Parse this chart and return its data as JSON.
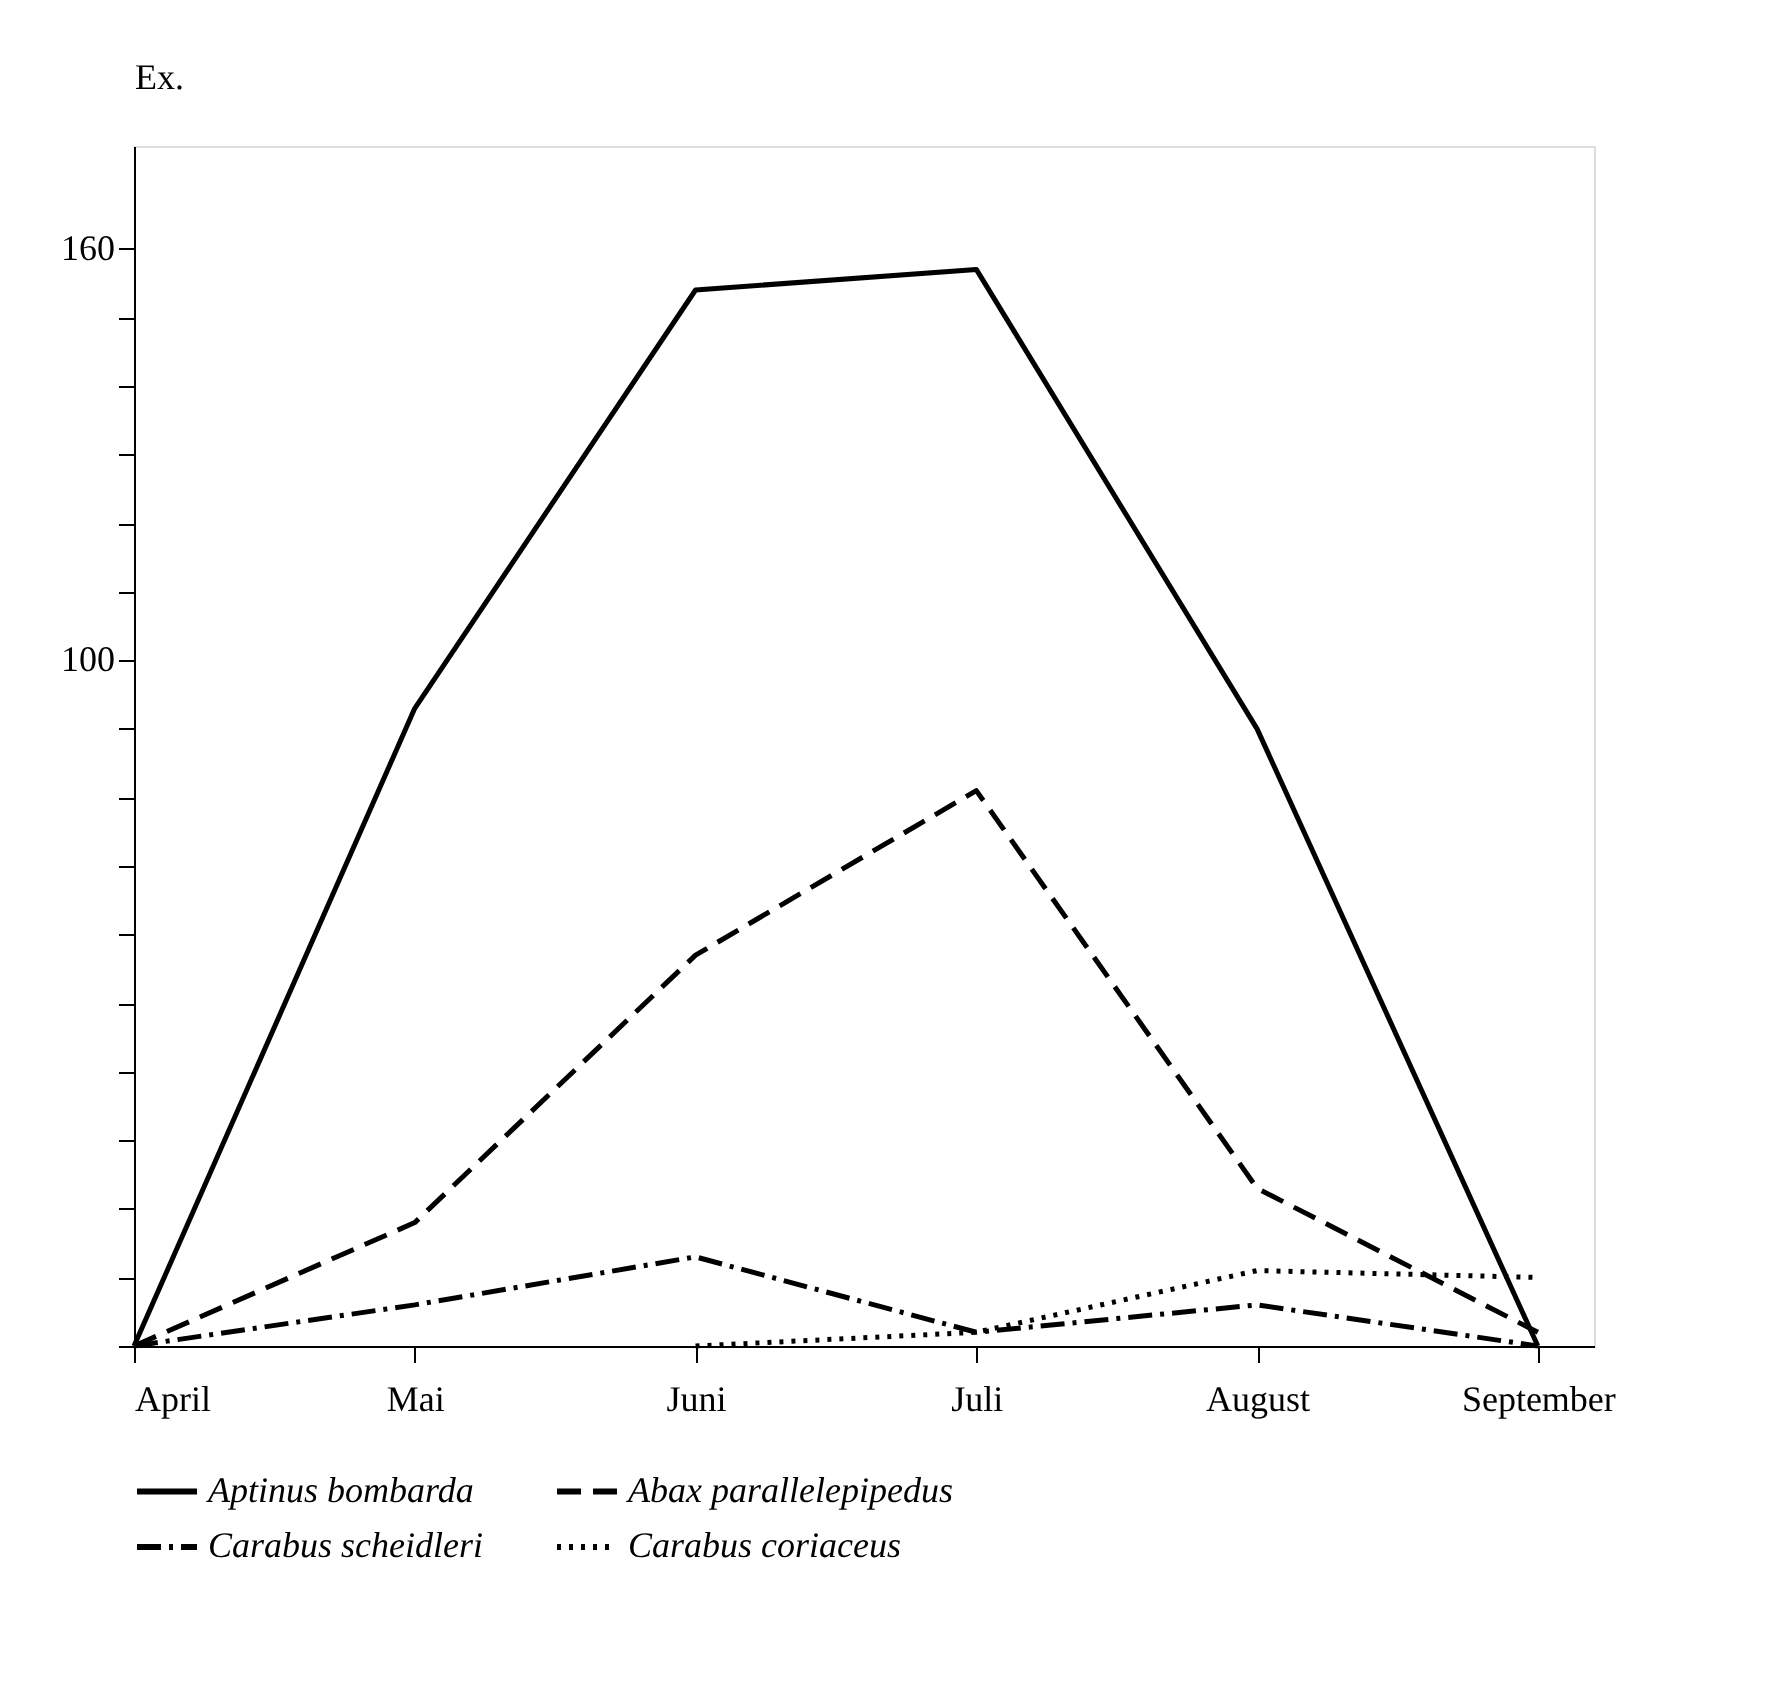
{
  "chart_data": {
    "type": "line",
    "ylabel": "Ex.",
    "categories": [
      "April",
      "Mai",
      "Juni",
      "Juli",
      "August",
      "September"
    ],
    "series": [
      {
        "name": "Aptinus bombarda",
        "color": "#000000",
        "line_style": "solid",
        "values": [
          0,
          93,
          154,
          157,
          90,
          0
        ]
      },
      {
        "name": "Abax parallelepipedus",
        "color": "#000000",
        "line_style": "dashed",
        "values": [
          0,
          18,
          57,
          81,
          23,
          2
        ]
      },
      {
        "name": "Carabus scheidleri",
        "color": "#000000",
        "line_style": "dashdot",
        "values": [
          0,
          6,
          13,
          2,
          6,
          0
        ]
      },
      {
        "name": "Carabus coriaceus",
        "color": "#000000",
        "line_style": "dotted",
        "values": [
          null,
          null,
          0,
          2,
          11,
          10
        ]
      }
    ],
    "ylim": [
      0,
      175
    ],
    "yticks": [
      {
        "value": 0,
        "label": null
      },
      {
        "value": 10,
        "label": null
      },
      {
        "value": 20,
        "label": null
      },
      {
        "value": 30,
        "label": null
      },
      {
        "value": 40,
        "label": null
      },
      {
        "value": 50,
        "label": null
      },
      {
        "value": 60,
        "label": null
      },
      {
        "value": 70,
        "label": null
      },
      {
        "value": 80,
        "label": null
      },
      {
        "value": 90,
        "label": null
      },
      100,
      {
        "value": 110,
        "label": null
      },
      {
        "value": 120,
        "label": null
      },
      {
        "value": 130,
        "label": null
      },
      {
        "value": 140,
        "label": null
      },
      {
        "value": 150,
        "label": null
      },
      160
    ],
    "grid": false,
    "legend": "bottom",
    "marker": "none"
  }
}
